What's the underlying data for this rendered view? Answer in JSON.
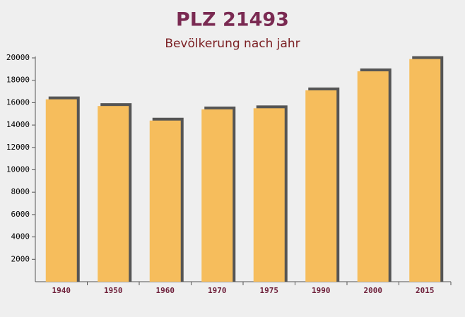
{
  "chart_data": {
    "type": "bar",
    "title": "PLZ 21493",
    "subtitle": "Bevölkerung nach jahr",
    "categories": [
      "1940",
      "1950",
      "1960",
      "1970",
      "1975",
      "1990",
      "2000",
      "2015"
    ],
    "values": [
      16300,
      15700,
      14400,
      15400,
      15500,
      17100,
      18800,
      19900
    ],
    "color": "#f6bd5c",
    "ylim": [
      0,
      20000
    ],
    "yticks": [
      2000,
      4000,
      6000,
      8000,
      10000,
      12000,
      14000,
      16000,
      18000,
      20000
    ]
  }
}
